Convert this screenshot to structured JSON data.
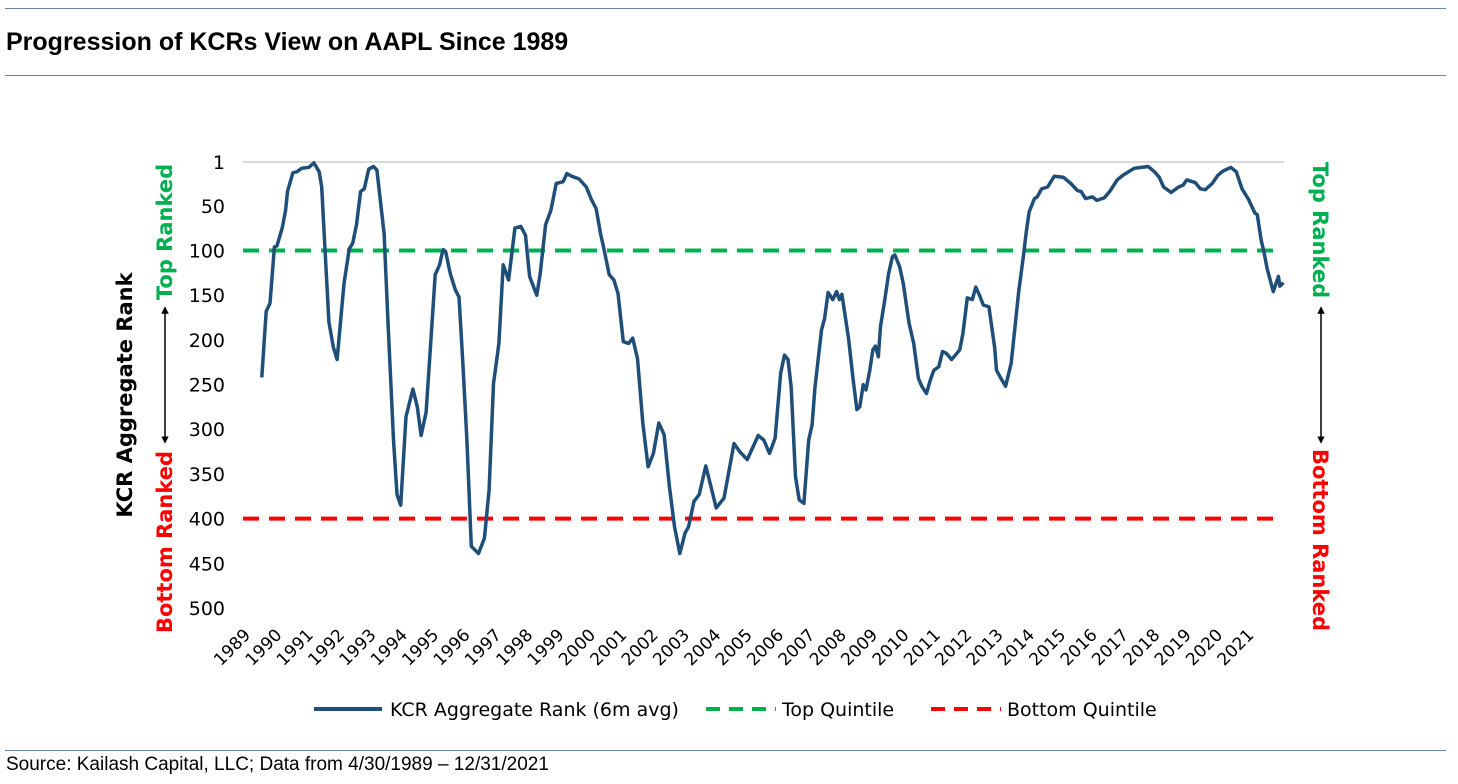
{
  "title": "Progression of KCRs View on AAPL Since 1989",
  "source": "Source: Kailash Capital, LLC; Data from 4/30/1989 – 12/31/2021",
  "colors": {
    "series": "#1f4e79",
    "top": "#00b050",
    "bottom": "#ff0000",
    "rule": "#6a84a8",
    "grid": "#d9d9d9"
  },
  "side_labels": {
    "top": "Top Ranked",
    "bottom": "Bottom Ranked"
  },
  "chart_data": {
    "type": "line",
    "title": "",
    "xlabel": "",
    "ylabel": "KCR Aggregate Rank",
    "y_reversed": true,
    "ylim": [
      1,
      500
    ],
    "xlim": [
      1988.73,
      2021.93
    ],
    "yticks": [
      1,
      50,
      100,
      150,
      200,
      250,
      300,
      350,
      400,
      450,
      500
    ],
    "xticks": [
      "1989",
      "1990",
      "1991",
      "1992",
      "1993",
      "1994",
      "1995",
      "1996",
      "1997",
      "1998",
      "1999",
      "2000",
      "2001",
      "2002",
      "2003",
      "2004",
      "2005",
      "2006",
      "2007",
      "2008",
      "2009",
      "2010",
      "2011",
      "2012",
      "2013",
      "2014",
      "2015",
      "2016",
      "2017",
      "2018",
      "2019",
      "2020",
      "2021"
    ],
    "grid": "top gridline only",
    "legend_position": "bottom",
    "reference_lines": [
      {
        "name": "Top Quintile",
        "value": 100,
        "style": "dashed",
        "color": "#00b050"
      },
      {
        "name": "Bottom Quintile",
        "value": 400,
        "style": "dashed",
        "color": "#ff0000"
      }
    ],
    "series": [
      {
        "name": "KCR Aggregate Rank (6m avg)",
        "color": "#1f4e79",
        "points": [
          [
            1989.33,
            242
          ],
          [
            1989.47,
            168
          ],
          [
            1989.59,
            159
          ],
          [
            1989.73,
            96
          ],
          [
            1989.81,
            95
          ],
          [
            1989.98,
            75
          ],
          [
            1990.09,
            55
          ],
          [
            1990.15,
            34
          ],
          [
            1990.32,
            13
          ],
          [
            1990.45,
            12
          ],
          [
            1990.6,
            8
          ],
          [
            1990.83,
            7
          ],
          [
            1990.99,
            2
          ],
          [
            1991.16,
            12
          ],
          [
            1991.24,
            29
          ],
          [
            1991.33,
            88
          ],
          [
            1991.47,
            180
          ],
          [
            1991.61,
            208
          ],
          [
            1991.73,
            222
          ],
          [
            1991.95,
            137
          ],
          [
            1992.12,
            98
          ],
          [
            1992.23,
            92
          ],
          [
            1992.35,
            71
          ],
          [
            1992.48,
            34
          ],
          [
            1992.6,
            31
          ],
          [
            1992.74,
            9
          ],
          [
            1992.89,
            6
          ],
          [
            1993.0,
            10
          ],
          [
            1993.23,
            81
          ],
          [
            1993.36,
            185
          ],
          [
            1993.53,
            312
          ],
          [
            1993.64,
            373
          ],
          [
            1993.76,
            385
          ],
          [
            1993.93,
            286
          ],
          [
            1994.15,
            255
          ],
          [
            1994.29,
            275
          ],
          [
            1994.41,
            307
          ],
          [
            1994.57,
            281
          ],
          [
            1994.72,
            202
          ],
          [
            1994.86,
            127
          ],
          [
            1995.0,
            116
          ],
          [
            1995.11,
            99
          ],
          [
            1995.19,
            101
          ],
          [
            1995.34,
            126
          ],
          [
            1995.5,
            144
          ],
          [
            1995.62,
            152
          ],
          [
            1995.73,
            219
          ],
          [
            1995.87,
            312
          ],
          [
            1996.01,
            431
          ],
          [
            1996.24,
            439
          ],
          [
            1996.43,
            422
          ],
          [
            1996.58,
            368
          ],
          [
            1996.72,
            249
          ],
          [
            1996.89,
            204
          ],
          [
            1997.03,
            116
          ],
          [
            1997.2,
            133
          ],
          [
            1997.4,
            75
          ],
          [
            1997.59,
            73
          ],
          [
            1997.74,
            83
          ],
          [
            1997.87,
            129
          ],
          [
            1998.1,
            150
          ],
          [
            1998.21,
            126
          ],
          [
            1998.38,
            71
          ],
          [
            1998.55,
            55
          ],
          [
            1998.72,
            25
          ],
          [
            1998.94,
            23
          ],
          [
            1999.06,
            14
          ],
          [
            1999.22,
            17
          ],
          [
            1999.45,
            20
          ],
          [
            1999.68,
            29
          ],
          [
            1999.84,
            43
          ],
          [
            1999.99,
            53
          ],
          [
            2000.13,
            81
          ],
          [
            2000.24,
            98
          ],
          [
            2000.41,
            127
          ],
          [
            2000.56,
            133
          ],
          [
            2000.69,
            148
          ],
          [
            2000.86,
            202
          ],
          [
            2001.03,
            204
          ],
          [
            2001.16,
            198
          ],
          [
            2001.31,
            221
          ],
          [
            2001.48,
            293
          ],
          [
            2001.65,
            342
          ],
          [
            2001.82,
            327
          ],
          [
            2001.99,
            293
          ],
          [
            2002.16,
            306
          ],
          [
            2002.33,
            364
          ],
          [
            2002.49,
            409
          ],
          [
            2002.66,
            439
          ],
          [
            2002.83,
            416
          ],
          [
            2002.94,
            409
          ],
          [
            2003.11,
            381
          ],
          [
            2003.28,
            373
          ],
          [
            2003.49,
            341
          ],
          [
            2003.68,
            368
          ],
          [
            2003.82,
            388
          ],
          [
            2004.07,
            377
          ],
          [
            2004.39,
            316
          ],
          [
            2004.57,
            325
          ],
          [
            2004.81,
            334
          ],
          [
            2005.16,
            307
          ],
          [
            2005.34,
            312
          ],
          [
            2005.52,
            327
          ],
          [
            2005.7,
            310
          ],
          [
            2005.88,
            237
          ],
          [
            2006.0,
            217
          ],
          [
            2006.11,
            222
          ],
          [
            2006.21,
            252
          ],
          [
            2006.35,
            353
          ],
          [
            2006.47,
            379
          ],
          [
            2006.62,
            383
          ],
          [
            2006.77,
            312
          ],
          [
            2006.88,
            295
          ],
          [
            2006.97,
            254
          ],
          [
            2007.18,
            189
          ],
          [
            2007.28,
            176
          ],
          [
            2007.39,
            147
          ],
          [
            2007.54,
            155
          ],
          [
            2007.66,
            146
          ],
          [
            2007.75,
            155
          ],
          [
            2007.83,
            149
          ],
          [
            2008.04,
            198
          ],
          [
            2008.19,
            245
          ],
          [
            2008.31,
            278
          ],
          [
            2008.4,
            275
          ],
          [
            2008.51,
            250
          ],
          [
            2008.6,
            256
          ],
          [
            2008.72,
            234
          ],
          [
            2008.82,
            211
          ],
          [
            2008.9,
            207
          ],
          [
            2008.99,
            219
          ],
          [
            2009.06,
            185
          ],
          [
            2009.2,
            155
          ],
          [
            2009.32,
            126
          ],
          [
            2009.44,
            107
          ],
          [
            2009.52,
            105
          ],
          [
            2009.67,
            118
          ],
          [
            2009.79,
            137
          ],
          [
            2009.97,
            181
          ],
          [
            2010.12,
            204
          ],
          [
            2010.27,
            243
          ],
          [
            2010.38,
            252
          ],
          [
            2010.53,
            260
          ],
          [
            2010.65,
            245
          ],
          [
            2010.76,
            234
          ],
          [
            2010.92,
            230
          ],
          [
            2011.04,
            213
          ],
          [
            2011.16,
            215
          ],
          [
            2011.33,
            222
          ],
          [
            2011.45,
            217
          ],
          [
            2011.59,
            211
          ],
          [
            2011.69,
            193
          ],
          [
            2011.83,
            153
          ],
          [
            2011.99,
            155
          ],
          [
            2012.1,
            141
          ],
          [
            2012.22,
            150
          ],
          [
            2012.34,
            161
          ],
          [
            2012.52,
            163
          ],
          [
            2012.7,
            208
          ],
          [
            2012.76,
            234
          ],
          [
            2012.9,
            243
          ],
          [
            2013.05,
            252
          ],
          [
            2013.23,
            226
          ],
          [
            2013.47,
            146
          ],
          [
            2013.61,
            109
          ],
          [
            2013.71,
            79
          ],
          [
            2013.8,
            57
          ],
          [
            2013.97,
            42
          ],
          [
            2014.06,
            40
          ],
          [
            2014.2,
            31
          ],
          [
            2014.39,
            29
          ],
          [
            2014.6,
            17
          ],
          [
            2014.89,
            18
          ],
          [
            2015.13,
            25
          ],
          [
            2015.34,
            33
          ],
          [
            2015.46,
            34
          ],
          [
            2015.6,
            42
          ],
          [
            2015.82,
            40
          ],
          [
            2015.96,
            44
          ],
          [
            2016.2,
            41
          ],
          [
            2016.37,
            34
          ],
          [
            2016.61,
            21
          ],
          [
            2016.79,
            16
          ],
          [
            2016.97,
            12
          ],
          [
            2017.15,
            8
          ],
          [
            2017.38,
            7
          ],
          [
            2017.6,
            6
          ],
          [
            2017.8,
            12
          ],
          [
            2017.95,
            18
          ],
          [
            2018.09,
            29
          ],
          [
            2018.33,
            35
          ],
          [
            2018.57,
            29
          ],
          [
            2018.71,
            27
          ],
          [
            2018.83,
            21
          ],
          [
            2019.1,
            24
          ],
          [
            2019.26,
            31
          ],
          [
            2019.42,
            32
          ],
          [
            2019.64,
            25
          ],
          [
            2019.82,
            16
          ],
          [
            2019.99,
            11
          ],
          [
            2020.23,
            7
          ],
          [
            2020.41,
            12
          ],
          [
            2020.59,
            31
          ],
          [
            2020.8,
            43
          ],
          [
            2021.0,
            58
          ],
          [
            2021.08,
            60
          ],
          [
            2021.2,
            88
          ],
          [
            2021.3,
            103
          ],
          [
            2021.39,
            120
          ],
          [
            2021.59,
            146
          ],
          [
            2021.75,
            129
          ],
          [
            2021.8,
            140
          ],
          [
            2021.91,
            136
          ]
        ]
      }
    ]
  }
}
